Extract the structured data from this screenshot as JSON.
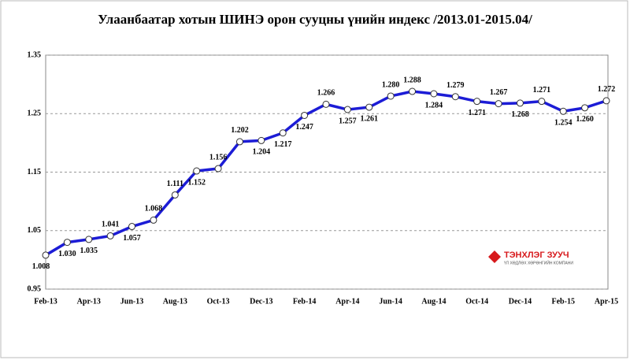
{
  "chart_data": {
    "type": "line",
    "title": "Улаанбаатар хотын ШИНЭ орон сууцны үнийн индекс /2013.01-2015.04/",
    "categories": [
      "Feb-13",
      null,
      "Apr-13",
      null,
      "Jun-13",
      null,
      "Aug-13",
      null,
      "Oct-13",
      null,
      "Dec-13",
      null,
      "Feb-14",
      null,
      "Apr-14",
      null,
      "Jun-14",
      null,
      "Aug-14",
      null,
      "Oct-14",
      null,
      "Dec-14",
      null,
      "Feb-15",
      null,
      "Apr-15"
    ],
    "series": [
      {
        "name": "index",
        "color": "#1c1cd6",
        "values": [
          1.008,
          1.03,
          1.035,
          1.041,
          1.057,
          1.068,
          1.111,
          1.152,
          1.156,
          1.202,
          1.204,
          1.217,
          1.247,
          1.266,
          1.257,
          1.261,
          1.28,
          1.288,
          1.284,
          1.279,
          1.271,
          1.267,
          1.268,
          1.271,
          1.254,
          1.26,
          1.272
        ],
        "value_labels": [
          "1.008",
          "1.030",
          "1.035",
          "1.041",
          "1.057",
          "1.068",
          "1.111",
          "1.152",
          "1.156",
          "1.202",
          "1.204",
          "1.217",
          "1.247",
          "1.266",
          "1.257",
          "1.261",
          "1.280",
          "1.288",
          "1.284",
          "1.279",
          "1.271",
          "1.267",
          "1.268",
          "1.271",
          "1.254",
          "1.260",
          "1.272"
        ]
      }
    ],
    "ylim": [
      0.95,
      1.35
    ],
    "yticks": [
      0.95,
      1.05,
      1.15,
      1.25,
      1.35
    ],
    "grid": true,
    "logo": {
      "name": "ТЭНХЛЭГ ЗУУЧ",
      "tagline": "ҮЛ ХӨДЛӨХ ХӨРӨНГИЙН КОМПАНИ"
    }
  }
}
